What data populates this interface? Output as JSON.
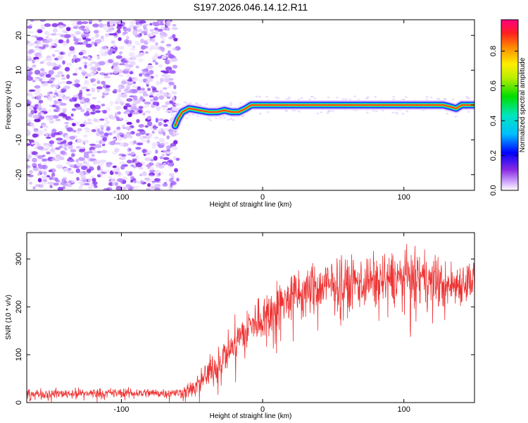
{
  "title": "S197.2026.046.14.12.R11",
  "chart_data": [
    {
      "type": "heatmap",
      "title": "S197.2026.046.14.12.R11",
      "xlabel": "Height of straight line (km)",
      "ylabel": "Frequency (Hz)",
      "xlim": [
        -167,
        150
      ],
      "ylim": [
        -24.5,
        24.5
      ],
      "xticks": [
        -100,
        0,
        100
      ],
      "xtick_labels": [
        "-100",
        "0",
        "100"
      ],
      "yticks": [
        -20,
        -10,
        0,
        10,
        20
      ],
      "ytick_labels": [
        "-20",
        "-10",
        "0",
        "10",
        "20"
      ],
      "noise_region_x": [
        -167,
        -60
      ],
      "ridge": {
        "x": [
          -62,
          -60,
          -57,
          -52,
          -45,
          -38,
          -32,
          -27,
          -22,
          -17,
          -12,
          -8,
          0,
          20,
          60,
          100,
          128,
          133,
          137,
          141,
          146,
          150
        ],
        "y": [
          -6,
          -4,
          -2,
          -1,
          -1.5,
          -2,
          -2,
          -1.5,
          -2,
          -2,
          -1,
          0,
          0,
          0,
          0,
          0,
          0,
          -0.5,
          -1,
          0,
          0,
          0
        ]
      },
      "colorbar": {
        "label": "Normalized spectral amplitude",
        "range": [
          0,
          0.98
        ],
        "ticks": [
          0,
          0.2,
          0.4,
          0.6,
          0.8
        ],
        "tick_labels": [
          "0.0",
          "0.2",
          "0.4",
          "0.6",
          "0.8"
        ]
      }
    },
    {
      "type": "line",
      "xlabel": "Height of straight line (km)",
      "ylabel": "SNR (10 * v/v)",
      "xlim": [
        -167,
        150
      ],
      "ylim": [
        0,
        355
      ],
      "xticks": [
        -100,
        0,
        100
      ],
      "xtick_labels": [
        "-100",
        "0",
        "100"
      ],
      "yticks": [
        0,
        100,
        200,
        300
      ],
      "ytick_labels": [
        "0",
        "100",
        "200",
        "300"
      ],
      "series": [
        {
          "name": "SNR",
          "color": "#ee3333",
          "trend_x": [
            -167,
            -110,
            -60,
            -50,
            -40,
            -30,
            -20,
            -10,
            0,
            10,
            20,
            30,
            45,
            60,
            80,
            100,
            120,
            130,
            140,
            150
          ],
          "trend_y": [
            18,
            20,
            20,
            28,
            55,
            90,
            125,
            155,
            180,
            200,
            220,
            232,
            242,
            248,
            255,
            262,
            255,
            242,
            250,
            258
          ],
          "noise_amplitude": [
            10,
            10,
            10,
            18,
            30,
            38,
            42,
            45,
            48,
            50,
            52,
            52,
            55,
            55,
            55,
            55,
            55,
            50,
            45,
            45
          ]
        }
      ]
    }
  ]
}
